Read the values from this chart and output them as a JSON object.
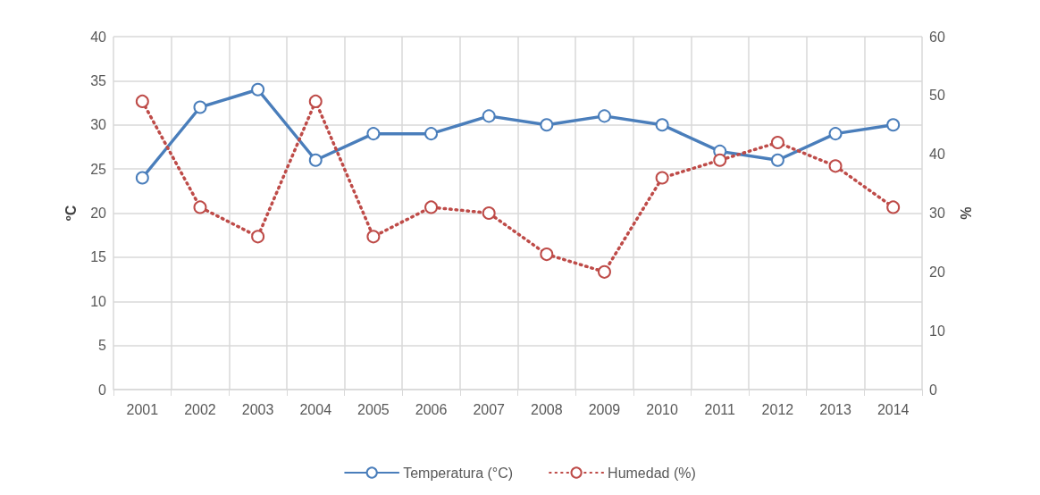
{
  "chart_data": {
    "type": "line",
    "ylabel": "ºC",
    "y2label": "%",
    "categories": [
      "2001",
      "2002",
      "2003",
      "2004",
      "2005",
      "2006",
      "2007",
      "2008",
      "2009",
      "2010",
      "2011",
      "2012",
      "2013",
      "2014"
    ],
    "series": [
      {
        "name": "Temperatura (°C)",
        "color": "#4a7ebb",
        "line_style": "solid",
        "values": [
          24,
          32,
          34,
          26,
          29,
          29,
          31,
          30,
          31,
          30,
          27,
          26,
          29,
          30
        ]
      },
      {
        "name": "Humedad (%)",
        "color": "#be4b48",
        "line_style": "dotted",
        "axis": "y2",
        "values": [
          49,
          31,
          26,
          49,
          26,
          31,
          30,
          23,
          20,
          36,
          39,
          42,
          38,
          31
        ]
      }
    ],
    "ylim": [
      0,
      40
    ],
    "yticks": [
      0,
      5,
      10,
      15,
      20,
      25,
      30,
      35,
      40
    ],
    "y2lim": [
      0,
      60
    ],
    "y2ticks": [
      0,
      10,
      20,
      30,
      40,
      50,
      60
    ],
    "grid": true,
    "legend": "bottom",
    "marker": "circle"
  }
}
